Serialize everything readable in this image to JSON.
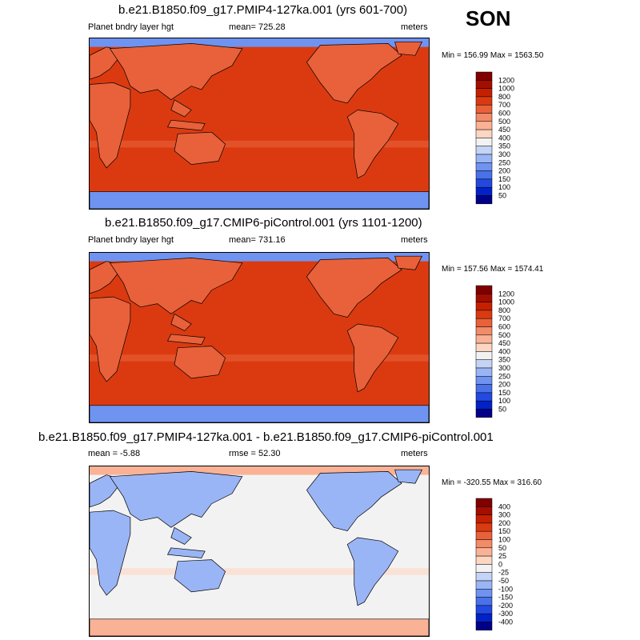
{
  "season": "SON",
  "chart_data": [
    {
      "type": "heatmap",
      "title": "b.e21.B1850.f09_g17.PMIP4-127ka.001 (yrs 601-700)",
      "variable": "Planet bndry layer hgt",
      "stat_label": "mean= 725.28",
      "mean": 725.28,
      "units": "meters",
      "minmax_label": "Min = 156.99 Max = 1563.50",
      "min": 156.99,
      "max": 1563.5,
      "colorbar": {
        "levels": [
          "1200",
          "1000",
          "800",
          "700",
          "600",
          "500",
          "450",
          "400",
          "350",
          "300",
          "250",
          "200",
          "150",
          "100",
          "50"
        ],
        "colors": [
          "#800000",
          "#a30e00",
          "#c52100",
          "#db3a10",
          "#e8613a",
          "#f28b68",
          "#f9b295",
          "#fdd6c2",
          "#f2f2f2",
          "#c4d4f7",
          "#9ab5f5",
          "#6f93f0",
          "#4871ea",
          "#2349e0",
          "#0022c8",
          "#000089"
        ]
      },
      "field": {
        "ocean": "#db3a10",
        "land": "#e8613a",
        "polar": "#6f93f0"
      }
    },
    {
      "type": "heatmap",
      "title": "b.e21.B1850.f09_g17.CMIP6-piControl.001 (yrs 1101-1200)",
      "variable": "Planet bndry layer hgt",
      "stat_label": "mean= 731.16",
      "mean": 731.16,
      "units": "meters",
      "minmax_label": "Min = 157.56 Max = 1574.41",
      "min": 157.56,
      "max": 1574.41,
      "colorbar": {
        "levels": [
          "1200",
          "1000",
          "800",
          "700",
          "600",
          "500",
          "450",
          "400",
          "350",
          "300",
          "250",
          "200",
          "150",
          "100",
          "50"
        ],
        "colors": [
          "#800000",
          "#a30e00",
          "#c52100",
          "#db3a10",
          "#e8613a",
          "#f28b68",
          "#f9b295",
          "#fdd6c2",
          "#f2f2f2",
          "#c4d4f7",
          "#9ab5f5",
          "#6f93f0",
          "#4871ea",
          "#2349e0",
          "#0022c8",
          "#000089"
        ]
      },
      "field": {
        "ocean": "#db3a10",
        "land": "#e8613a",
        "polar": "#6f93f0"
      }
    },
    {
      "type": "heatmap",
      "title": "b.e21.B1850.f09_g17.PMIP4-127ka.001 - b.e21.B1850.f09_g17.CMIP6-piControl.001",
      "stat_label": "mean =  -5.88",
      "mean": -5.88,
      "rmse_label": "rmse =  52.30",
      "rmse": 52.3,
      "units": "meters",
      "minmax_label": "Min = -320.55 Max = 316.60",
      "min": -320.55,
      "max": 316.6,
      "colorbar": {
        "levels": [
          "400",
          "300",
          "200",
          "150",
          "100",
          "50",
          "25",
          "0",
          "-25",
          "-50",
          "-100",
          "-150",
          "-200",
          "-300",
          "-400"
        ],
        "colors": [
          "#800000",
          "#a30e00",
          "#c52100",
          "#db3a10",
          "#e8613a",
          "#f28b68",
          "#f9b295",
          "#fdd6c2",
          "#f2f2f2",
          "#c4d4f7",
          "#9ab5f5",
          "#6f93f0",
          "#4871ea",
          "#2349e0",
          "#0022c8",
          "#000089"
        ]
      },
      "field": {
        "ocean": "#f2f2f2",
        "land": "#9ab5f5",
        "polar": "#f9b295"
      }
    }
  ]
}
